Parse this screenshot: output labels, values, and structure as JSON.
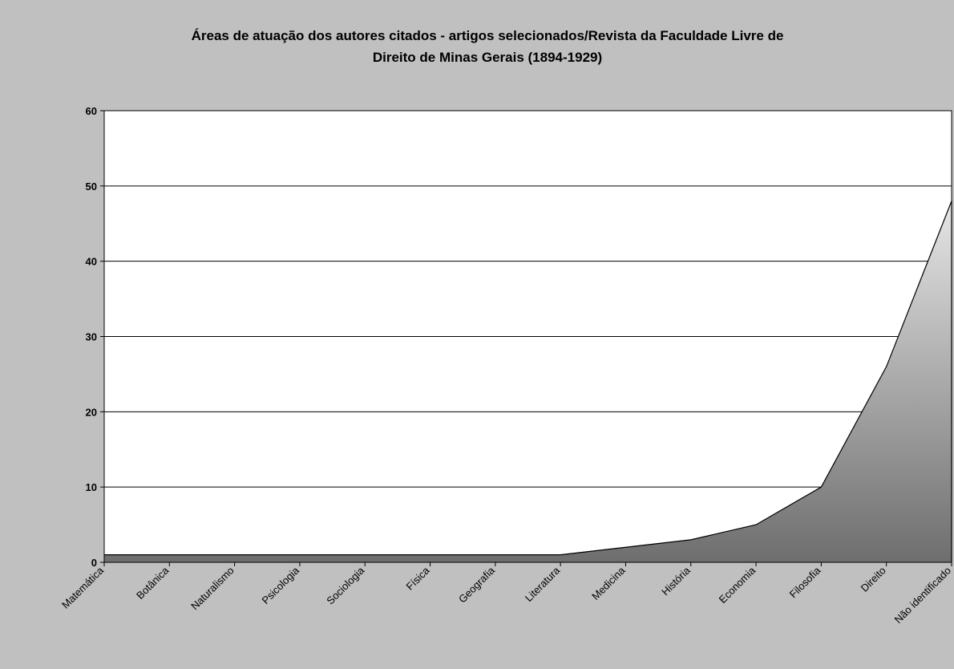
{
  "chart_data": {
    "type": "area",
    "title": "Áreas de atuação dos autores citados - artigos selecionados/Revista da Faculdade Livre de Direito de Minas Gerais (1894-1929)",
    "title_lines": [
      "Áreas de atuação dos autores citados - artigos selecionados/Revista da Faculdade Livre de",
      "Direito de Minas Gerais (1894-1929)"
    ],
    "categories": [
      "Matemática",
      "Botânica",
      "Naturalismo",
      "Psicologia",
      "Sociologia",
      "Física",
      "Geografia",
      "Literatura",
      "Medicina",
      "História",
      "Economia",
      "Filosofia",
      "Direito",
      "Não identificado"
    ],
    "values": [
      1,
      1,
      1,
      1,
      1,
      1,
      1,
      1,
      2,
      3,
      5,
      10,
      26,
      48
    ],
    "ylim": [
      0,
      60
    ],
    "yticks": [
      0,
      10,
      20,
      30,
      40,
      50,
      60
    ],
    "xlabel": "",
    "ylabel": "",
    "grid": true,
    "legend": "none",
    "colors": {
      "background": "#c0c0c0",
      "plot_area": "#ffffff",
      "fill_top": "#e6e6e6",
      "fill_bottom": "#6e6e6e",
      "line": "#000000"
    }
  }
}
